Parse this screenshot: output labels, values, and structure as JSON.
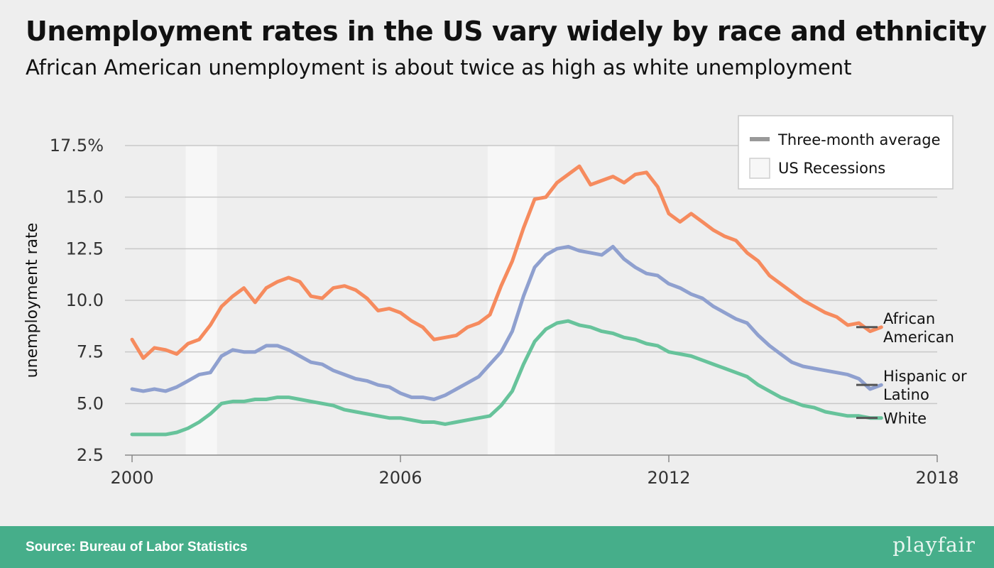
{
  "header": {
    "title": "Unemployment rates in the US vary widely by race and ethnicity",
    "subtitle": "African American unemployment is about twice as high as white unemployment"
  },
  "footer": {
    "source": "Source: Bureau of Labor Statistics",
    "brand": "playfair"
  },
  "colors": {
    "african_american": "#f68b5e",
    "hispanic": "#8fa0cf",
    "white": "#67c39b",
    "recession": "#f7f7f7",
    "legend_line": "#999999",
    "grid": "#c8c8c8"
  },
  "chart_data": {
    "type": "line",
    "title": "Unemployment rates in the US vary widely by race and ethnicity",
    "subtitle": "African American unemployment is about twice as high as white unemployment",
    "xlabel": "",
    "ylabel": "unemployment rate",
    "xlim": [
      2000,
      2018
    ],
    "ylim": [
      2.5,
      17.5
    ],
    "x_ticks": [
      "2000",
      "2006",
      "2012",
      "2018"
    ],
    "y_ticks": [
      "2.5",
      "5.0",
      "7.5",
      "10.0",
      "12.5",
      "15.0",
      "17.5%"
    ],
    "grid": true,
    "legend_position": "top-right",
    "legend": [
      {
        "label": "Three-month average",
        "kind": "line"
      },
      {
        "label": "US Recessions",
        "kind": "box"
      }
    ],
    "recessions": [
      [
        2001.2,
        2001.9
      ],
      [
        2007.95,
        2009.45
      ]
    ],
    "series": [
      {
        "name": "African American",
        "label_lines": [
          "African",
          "American"
        ],
        "color": "#f68b5e",
        "x": [
          2000,
          2000.25,
          2000.5,
          2000.75,
          2001,
          2001.25,
          2001.5,
          2001.75,
          2002,
          2002.25,
          2002.5,
          2002.75,
          2003,
          2003.25,
          2003.5,
          2003.75,
          2004,
          2004.25,
          2004.5,
          2004.75,
          2005,
          2005.25,
          2005.5,
          2005.75,
          2006,
          2006.25,
          2006.5,
          2006.75,
          2007,
          2007.25,
          2007.5,
          2007.75,
          2008,
          2008.25,
          2008.5,
          2008.75,
          2009,
          2009.25,
          2009.5,
          2009.75,
          2010,
          2010.25,
          2010.5,
          2010.75,
          2011,
          2011.25,
          2011.5,
          2011.75,
          2012,
          2012.25,
          2012.5,
          2012.75,
          2013,
          2013.25,
          2013.5,
          2013.75,
          2014,
          2014.25,
          2014.5,
          2014.75,
          2015,
          2015.25,
          2015.5,
          2015.75,
          2016,
          2016.25,
          2016.5,
          2016.75
        ],
        "values": [
          8.1,
          7.2,
          7.7,
          7.6,
          7.4,
          7.9,
          8.1,
          8.8,
          9.7,
          10.2,
          10.6,
          9.9,
          10.6,
          10.9,
          11.1,
          10.9,
          10.2,
          10.1,
          10.6,
          10.7,
          10.5,
          10.1,
          9.5,
          9.6,
          9.4,
          9.0,
          8.7,
          8.1,
          8.2,
          8.3,
          8.7,
          8.9,
          9.3,
          10.7,
          11.9,
          13.5,
          14.9,
          15.0,
          15.7,
          16.1,
          16.5,
          15.6,
          15.8,
          16.0,
          15.7,
          16.1,
          16.2,
          15.5,
          14.2,
          13.8,
          14.2,
          13.8,
          13.4,
          13.1,
          12.9,
          12.3,
          11.9,
          11.2,
          10.8,
          10.4,
          10.0,
          9.7,
          9.4,
          9.2,
          8.8,
          8.9,
          8.5,
          8.7
        ]
      },
      {
        "name": "Hispanic or Latino",
        "label_lines": [
          "Hispanic or",
          "Latino"
        ],
        "color": "#8fa0cf",
        "x": [
          2000,
          2000.25,
          2000.5,
          2000.75,
          2001,
          2001.25,
          2001.5,
          2001.75,
          2002,
          2002.25,
          2002.5,
          2002.75,
          2003,
          2003.25,
          2003.5,
          2003.75,
          2004,
          2004.25,
          2004.5,
          2004.75,
          2005,
          2005.25,
          2005.5,
          2005.75,
          2006,
          2006.25,
          2006.5,
          2006.75,
          2007,
          2007.25,
          2007.5,
          2007.75,
          2008,
          2008.25,
          2008.5,
          2008.75,
          2009,
          2009.25,
          2009.5,
          2009.75,
          2010,
          2010.25,
          2010.5,
          2010.75,
          2011,
          2011.25,
          2011.5,
          2011.75,
          2012,
          2012.25,
          2012.5,
          2012.75,
          2013,
          2013.25,
          2013.5,
          2013.75,
          2014,
          2014.25,
          2014.5,
          2014.75,
          2015,
          2015.25,
          2015.5,
          2015.75,
          2016,
          2016.25,
          2016.5,
          2016.75
        ],
        "values": [
          5.7,
          5.6,
          5.7,
          5.6,
          5.8,
          6.1,
          6.4,
          6.5,
          7.3,
          7.6,
          7.5,
          7.5,
          7.8,
          7.8,
          7.6,
          7.3,
          7.0,
          6.9,
          6.6,
          6.4,
          6.2,
          6.1,
          5.9,
          5.8,
          5.5,
          5.3,
          5.3,
          5.2,
          5.4,
          5.7,
          6.0,
          6.3,
          6.9,
          7.5,
          8.5,
          10.2,
          11.6,
          12.2,
          12.5,
          12.6,
          12.4,
          12.3,
          12.2,
          12.6,
          12.0,
          11.6,
          11.3,
          11.2,
          10.8,
          10.6,
          10.3,
          10.1,
          9.7,
          9.4,
          9.1,
          8.9,
          8.3,
          7.8,
          7.4,
          7.0,
          6.8,
          6.7,
          6.6,
          6.5,
          6.4,
          6.2,
          5.7,
          5.9
        ]
      },
      {
        "name": "White",
        "label_lines": [
          "White"
        ],
        "color": "#67c39b",
        "x": [
          2000,
          2000.25,
          2000.5,
          2000.75,
          2001,
          2001.25,
          2001.5,
          2001.75,
          2002,
          2002.25,
          2002.5,
          2002.75,
          2003,
          2003.25,
          2003.5,
          2003.75,
          2004,
          2004.25,
          2004.5,
          2004.75,
          2005,
          2005.25,
          2005.5,
          2005.75,
          2006,
          2006.25,
          2006.5,
          2006.75,
          2007,
          2007.25,
          2007.5,
          2007.75,
          2008,
          2008.25,
          2008.5,
          2008.75,
          2009,
          2009.25,
          2009.5,
          2009.75,
          2010,
          2010.25,
          2010.5,
          2010.75,
          2011,
          2011.25,
          2011.5,
          2011.75,
          2012,
          2012.25,
          2012.5,
          2012.75,
          2013,
          2013.25,
          2013.5,
          2013.75,
          2014,
          2014.25,
          2014.5,
          2014.75,
          2015,
          2015.25,
          2015.5,
          2015.75,
          2016,
          2016.25,
          2016.5,
          2016.75
        ],
        "values": [
          3.5,
          3.5,
          3.5,
          3.5,
          3.6,
          3.8,
          4.1,
          4.5,
          5.0,
          5.1,
          5.1,
          5.2,
          5.2,
          5.3,
          5.3,
          5.2,
          5.1,
          5.0,
          4.9,
          4.7,
          4.6,
          4.5,
          4.4,
          4.3,
          4.3,
          4.2,
          4.1,
          4.1,
          4.0,
          4.1,
          4.2,
          4.3,
          4.4,
          4.9,
          5.6,
          6.9,
          8.0,
          8.6,
          8.9,
          9.0,
          8.8,
          8.7,
          8.5,
          8.4,
          8.2,
          8.1,
          7.9,
          7.8,
          7.5,
          7.4,
          7.3,
          7.1,
          6.9,
          6.7,
          6.5,
          6.3,
          5.9,
          5.6,
          5.3,
          5.1,
          4.9,
          4.8,
          4.6,
          4.5,
          4.4,
          4.4,
          4.3,
          4.3
        ]
      }
    ]
  }
}
